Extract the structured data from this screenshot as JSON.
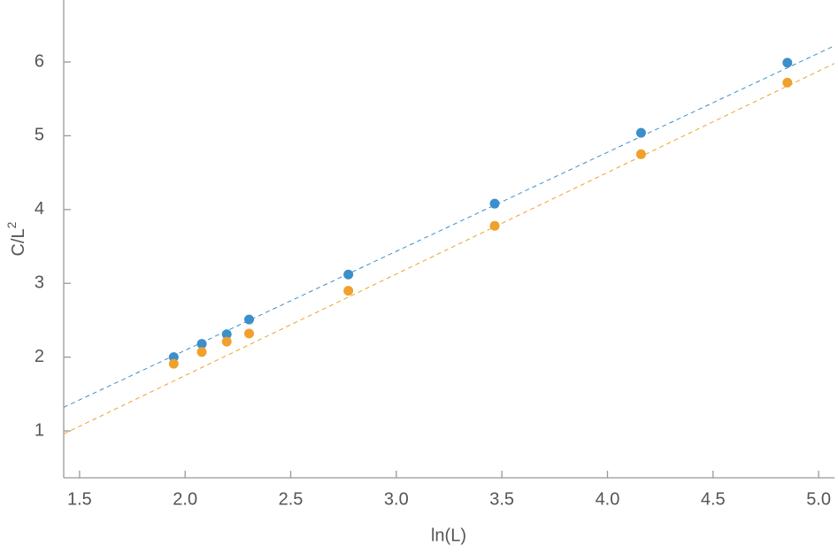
{
  "chart_data": {
    "type": "scatter",
    "xlabel": "ln(L)",
    "ylabel": {
      "base": "C/L",
      "sup": "2"
    },
    "xlim": [
      1.425,
      5.075
    ],
    "ylim": [
      0.365,
      6.84
    ],
    "xticks": [
      1.5,
      {
        "value": 2,
        "label": "2.0"
      },
      2.5,
      {
        "value": 3,
        "label": "3.0"
      },
      3.5,
      {
        "value": 4,
        "label": "4.0"
      },
      4.5,
      {
        "value": 5,
        "label": "5.0"
      }
    ],
    "yticks": [
      1,
      2,
      3,
      4,
      5,
      6
    ],
    "x": [
      1.946,
      2.079,
      2.197,
      2.303,
      2.773,
      3.466,
      4.159,
      4.852
    ],
    "series": [
      {
        "color": "#3b8fcb",
        "values": [
          2.0,
          2.18,
          2.31,
          2.51,
          3.12,
          4.08,
          5.04,
          5.99
        ]
      },
      {
        "color": "#f0a12c",
        "values": [
          1.91,
          2.07,
          2.21,
          2.32,
          2.9,
          3.78,
          4.75,
          5.72
        ]
      }
    ],
    "fits": [
      {
        "color": "#3b8fcb",
        "x": [
          1.425,
          5.075
        ],
        "values": [
          1.32,
          6.22
        ]
      },
      {
        "color": "#f0a12c",
        "x": [
          1.425,
          5.075
        ],
        "values": [
          0.96,
          5.98
        ]
      }
    ]
  }
}
